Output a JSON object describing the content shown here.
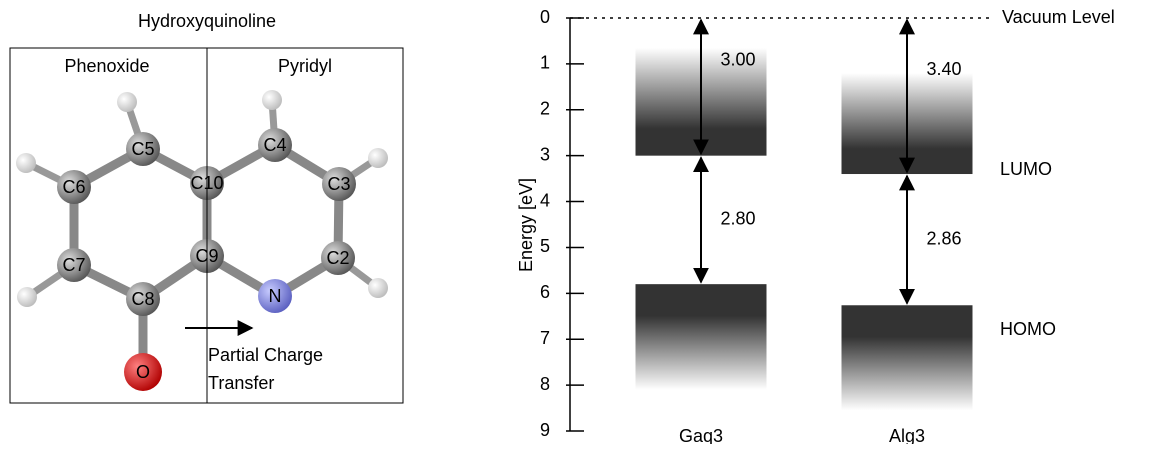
{
  "diagram": {
    "title": "Hydroxyquinoline",
    "left_region": "Phenoxide",
    "right_region": "Pyridyl",
    "atoms": [
      "C5",
      "C4",
      "C6",
      "C10",
      "C3",
      "C7",
      "C9",
      "C2",
      "C8",
      "N",
      "O"
    ],
    "arrow_label": [
      "Partial Charge",
      "Transfer"
    ]
  },
  "chart_data": {
    "type": "energy-levels",
    "y_label": "Energy [eV]",
    "inverted": true,
    "ylim": [
      0,
      9
    ],
    "yticks": [
      0,
      1,
      2,
      3,
      4,
      5,
      6,
      7,
      8,
      9
    ],
    "reference_label": "Vacuum Level",
    "categories": [
      "Gaq3",
      "Alg3"
    ],
    "series": [
      {
        "name": "LUMO",
        "values": [
          3.0,
          3.4
        ],
        "value_labels": [
          "3.00",
          "3.40"
        ]
      },
      {
        "name": "HOMO",
        "values": [
          2.8,
          2.86
        ],
        "value_labels": [
          "2.80",
          "2.86"
        ]
      }
    ],
    "lumo_band_top": [
      0.65,
      1.2
    ],
    "homo_band_bottom": [
      8.1,
      8.55
    ]
  }
}
